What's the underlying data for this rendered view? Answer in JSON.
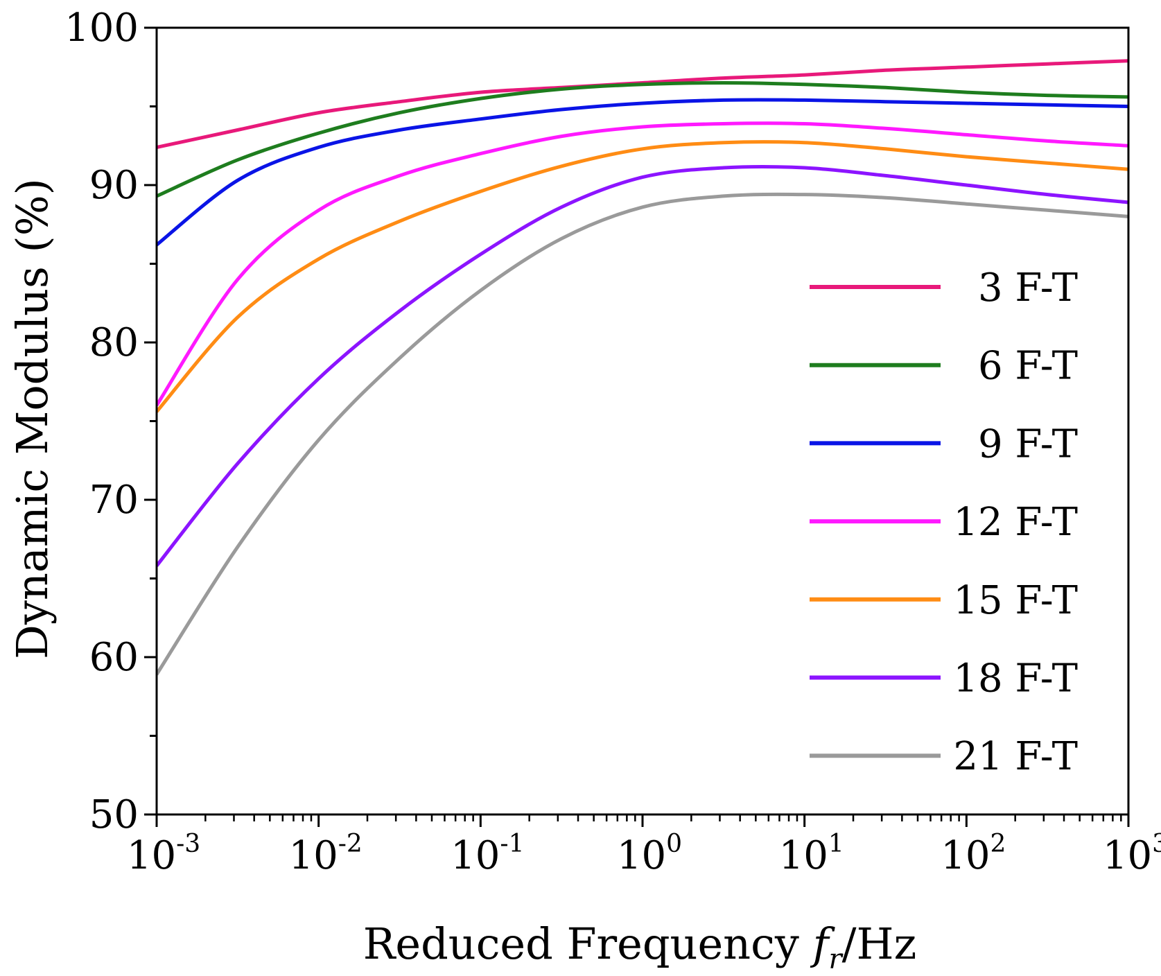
{
  "chart_data": {
    "type": "line",
    "title": "",
    "xlabel": "Reduced Frequency fr/Hz",
    "xlabel_parts": {
      "prefix": "Reduced Frequency ",
      "f": "f",
      "sub": "r",
      "suffix": "/Hz"
    },
    "ylabel": "Dynamic Modulus (%)",
    "xscale": "log",
    "xlim": [
      0.001,
      1000
    ],
    "ylim": [
      50,
      100
    ],
    "yticks": [
      {
        "value": 50,
        "label": "50"
      },
      {
        "value": 60,
        "label": "60"
      },
      {
        "value": 70,
        "label": "70"
      },
      {
        "value": 80,
        "label": "80"
      },
      {
        "value": 90,
        "label": "90"
      },
      {
        "value": 100,
        "label": "100"
      }
    ],
    "xticks": [
      {
        "exp": -3,
        "base": "10",
        "power": "-3"
      },
      {
        "exp": -2,
        "base": "10",
        "power": "-2"
      },
      {
        "exp": -1,
        "base": "10",
        "power": "-1"
      },
      {
        "exp": 0,
        "base": "10",
        "power": "0"
      },
      {
        "exp": 1,
        "base": "10",
        "power": "1"
      },
      {
        "exp": 2,
        "base": "10",
        "power": "2"
      },
      {
        "exp": 3,
        "base": "10",
        "power": "3"
      }
    ],
    "grid": false,
    "legend_position": "right-middle",
    "x_log10": [
      -3,
      -2.5,
      -2,
      -1.5,
      -1,
      -0.5,
      0,
      0.5,
      1,
      1.5,
      2,
      2.5,
      3
    ],
    "series": [
      {
        "name": "3 F-T",
        "color": "#e8197a",
        "values": [
          92.4,
          93.5,
          94.6,
          95.3,
          95.9,
          96.2,
          96.5,
          96.8,
          97.0,
          97.3,
          97.5,
          97.7,
          97.9
        ]
      },
      {
        "name": "6 F-T",
        "color": "#1e7d1e",
        "values": [
          89.3,
          91.6,
          93.3,
          94.6,
          95.5,
          96.1,
          96.4,
          96.5,
          96.4,
          96.2,
          95.9,
          95.7,
          95.6
        ]
      },
      {
        "name": "9 F-T",
        "color": "#0a14e6",
        "values": [
          86.2,
          90.3,
          92.4,
          93.5,
          94.2,
          94.8,
          95.2,
          95.4,
          95.4,
          95.3,
          95.2,
          95.1,
          95.0
        ]
      },
      {
        "name": "12 F-T",
        "color": "#ff19ff",
        "values": [
          76.0,
          84.0,
          88.4,
          90.6,
          92.0,
          93.1,
          93.7,
          93.9,
          93.9,
          93.6,
          93.2,
          92.8,
          92.5
        ]
      },
      {
        "name": "15 F-T",
        "color": "#ff8c14",
        "values": [
          75.6,
          81.6,
          85.3,
          87.7,
          89.6,
          91.2,
          92.3,
          92.7,
          92.7,
          92.3,
          91.8,
          91.4,
          91.0
        ]
      },
      {
        "name": "18 F-T",
        "color": "#8c14ff",
        "values": [
          65.8,
          72.3,
          77.7,
          82.0,
          85.6,
          88.6,
          90.5,
          91.1,
          91.1,
          90.6,
          90.0,
          89.4,
          88.9
        ]
      },
      {
        "name": "21 F-T",
        "color": "#9a9a9a",
        "values": [
          58.9,
          67.0,
          73.8,
          79.0,
          83.3,
          86.6,
          88.6,
          89.3,
          89.4,
          89.2,
          88.8,
          88.4,
          88.0
        ]
      }
    ]
  }
}
